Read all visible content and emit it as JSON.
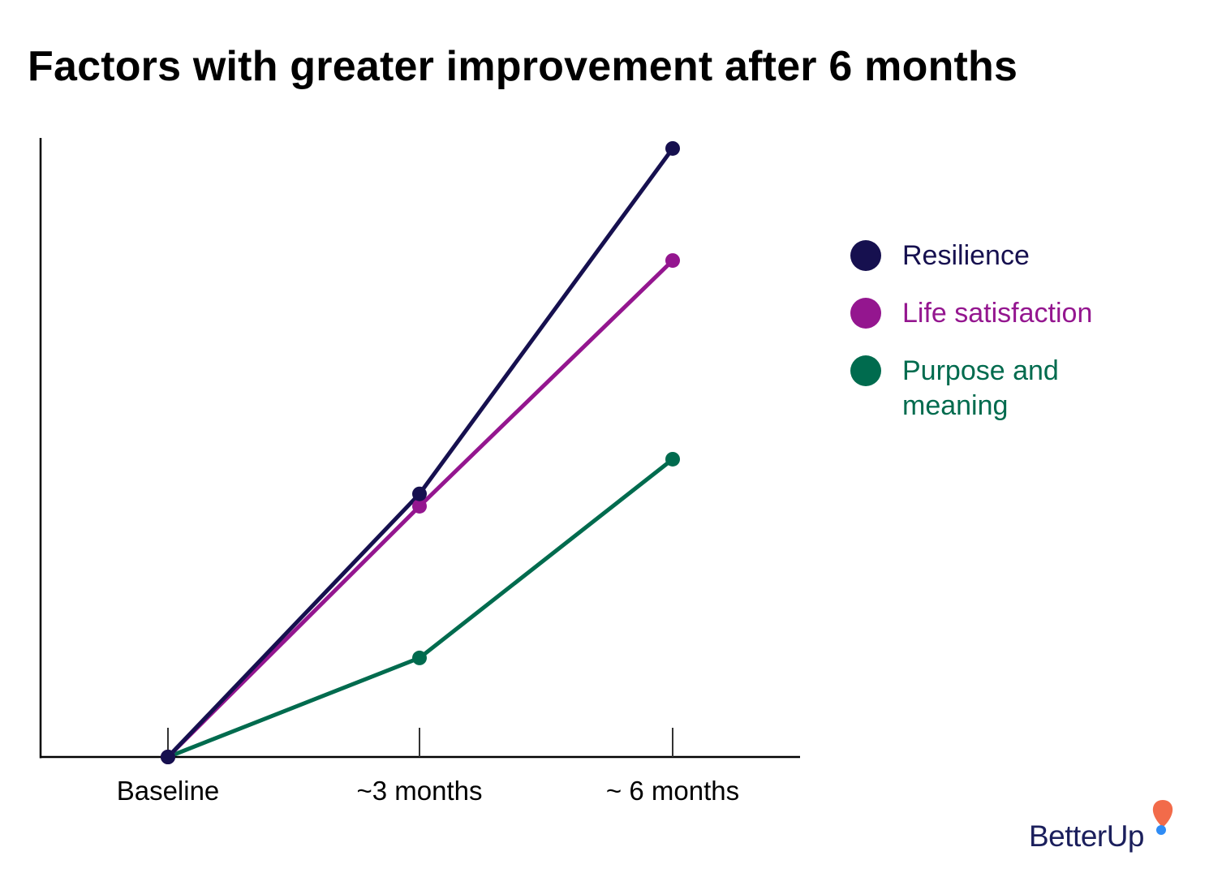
{
  "title": "Factors with greater improvement after 6 months",
  "colors": {
    "resilience": "#16104f",
    "life_satisfaction": "#94168f",
    "purpose": "#006b4e",
    "axis": "#000000",
    "logo_text": "#1b1f5c",
    "logo_accent_orange": "#f26b4a",
    "logo_accent_blue": "#2f8cf5"
  },
  "chart_data": {
    "type": "line",
    "title": "Factors with greater improvement after 6 months",
    "xlabel": "",
    "ylabel": "",
    "categories": [
      "Baseline",
      "~3 months",
      "~ 6 months"
    ],
    "ylim": [
      0,
      100
    ],
    "grid": false,
    "legend_position": "right",
    "series": [
      {
        "name": "Resilience",
        "color": "#16104f",
        "values": [
          0,
          42.5,
          98.3
        ]
      },
      {
        "name": "Life satisfaction",
        "color": "#94168f",
        "values": [
          0,
          40.5,
          80.2
        ]
      },
      {
        "name": "Purpose and meaning",
        "color": "#006b4e",
        "values": [
          0,
          16.0,
          48.1
        ]
      }
    ]
  },
  "legend": {
    "items": [
      {
        "label": "Resilience",
        "color": "#16104f"
      },
      {
        "label": "Life satisfaction",
        "color": "#94168f"
      },
      {
        "label": "Purpose and meaning",
        "color": "#006b4e"
      }
    ]
  },
  "logo": {
    "text": "BetterUp"
  }
}
